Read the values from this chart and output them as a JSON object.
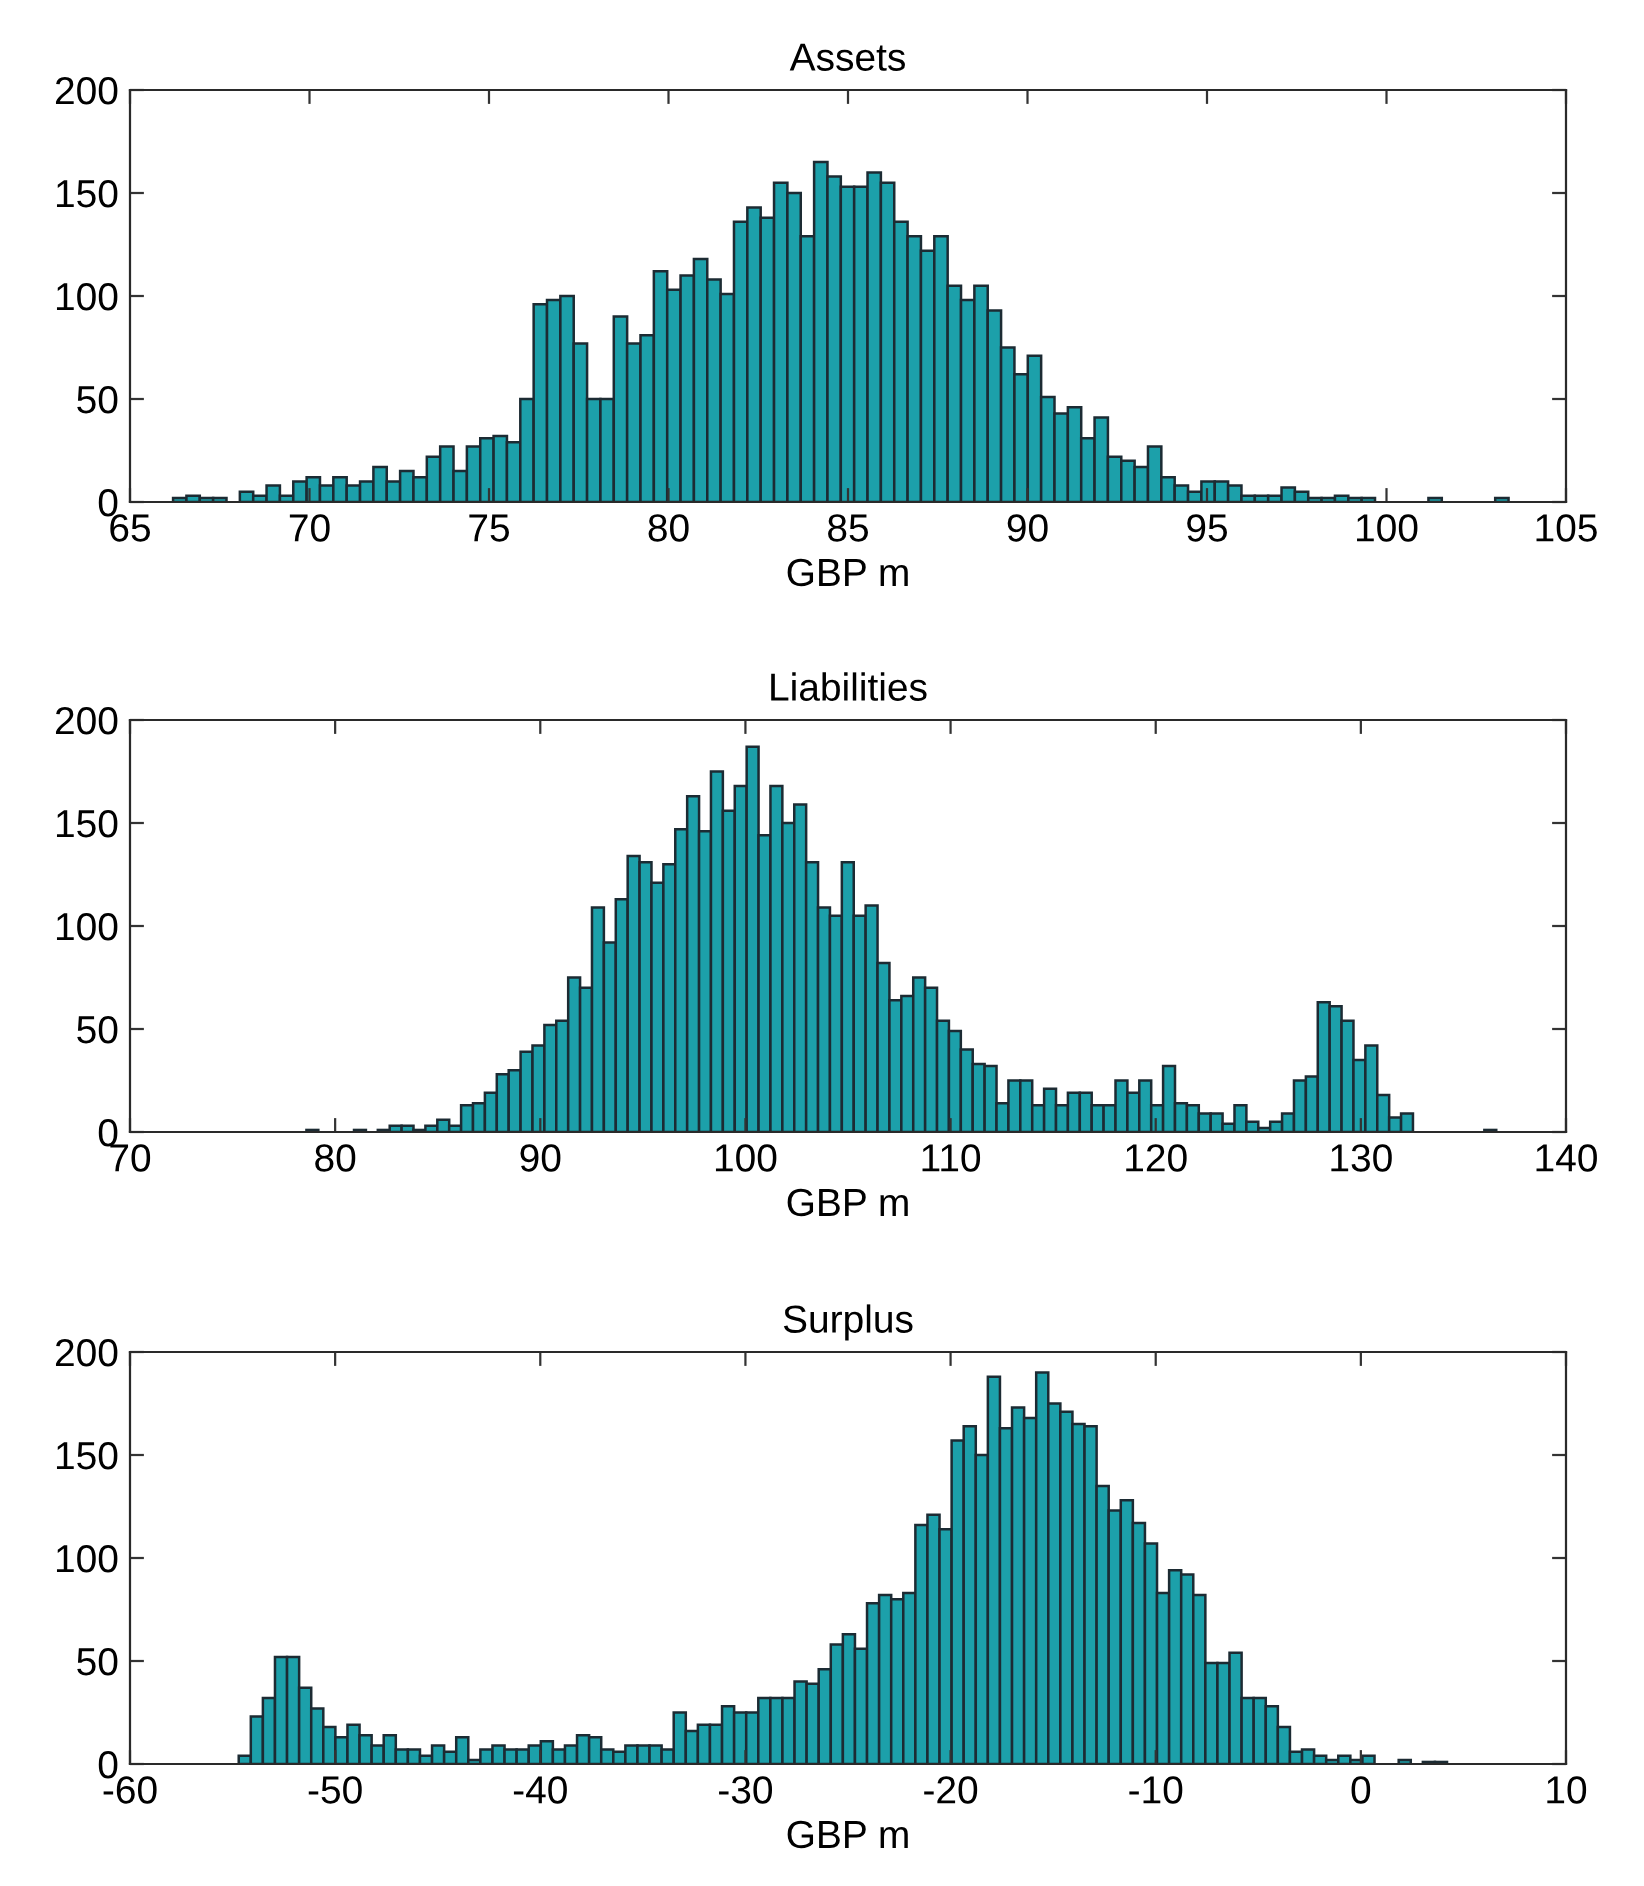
{
  "chart_data": [
    {
      "type": "histogram",
      "title": "Assets",
      "xlabel": "GBP m",
      "color": "#1ca0aa",
      "xlim": [
        65,
        105
      ],
      "xticks": [
        65,
        70,
        75,
        80,
        85,
        90,
        95,
        100,
        105
      ],
      "ylim": [
        0,
        200
      ],
      "yticks": [
        0,
        50,
        100,
        150,
        200
      ],
      "grid": false,
      "legend": false,
      "bins": [
        66.2,
        66.572,
        66.944,
        67.316,
        67.688,
        68.06,
        68.432,
        68.804,
        69.176,
        69.548,
        69.92,
        70.292,
        70.664,
        71.036,
        71.408,
        71.78,
        72.152,
        72.524,
        72.896,
        73.268,
        73.64,
        74.012,
        74.384,
        74.756,
        75.128,
        75.5,
        75.872,
        76.244,
        76.616,
        76.988,
        77.36,
        77.732,
        78.104,
        78.476,
        78.848,
        79.22,
        79.592,
        79.964,
        80.336,
        80.708,
        81.08,
        81.452,
        81.824,
        82.196,
        82.568,
        82.94,
        83.312,
        83.684,
        84.056,
        84.428,
        84.8,
        85.172,
        85.544,
        85.916,
        86.288,
        86.66,
        87.032,
        87.404,
        87.776,
        88.148,
        88.52,
        88.892,
        89.264,
        89.636,
        90.008,
        90.38,
        90.752,
        91.124,
        91.496,
        91.868,
        92.24,
        92.612,
        92.984,
        93.356,
        93.728,
        94.1,
        94.472,
        94.844,
        95.216,
        95.588,
        95.96,
        96.332,
        96.704,
        97.076,
        97.448,
        97.82,
        98.192,
        98.564,
        98.936,
        99.308,
        99.68,
        100.052,
        100.424,
        100.796,
        101.168,
        101.54,
        101.912,
        102.284,
        102.656,
        103.028,
        103.4
      ],
      "values": [
        2,
        3,
        2,
        2,
        0,
        5,
        3,
        8,
        3,
        10,
        12,
        8,
        12,
        8,
        10,
        17,
        10,
        15,
        12,
        22,
        27,
        15,
        27,
        31,
        32,
        29,
        50,
        96,
        98,
        100,
        77,
        50,
        50,
        90,
        77,
        81,
        112,
        103,
        110,
        118,
        108,
        101,
        136,
        143,
        138,
        155,
        150,
        129,
        165,
        158,
        153,
        153,
        160,
        155,
        136,
        129,
        122,
        129,
        105,
        98,
        105,
        93,
        75,
        62,
        71,
        51,
        43,
        46,
        31,
        41,
        22,
        20,
        17,
        27,
        12,
        8,
        5,
        10,
        10,
        8,
        3,
        3,
        3,
        7,
        5,
        2,
        2,
        3,
        2,
        2,
        0,
        0,
        0,
        0,
        2,
        0,
        0,
        0,
        0,
        2
      ]
    },
    {
      "type": "histogram",
      "title": "Liabilities",
      "xlabel": "GBP m",
      "color": "#1ca0aa",
      "xlim": [
        70,
        140
      ],
      "xticks": [
        70,
        80,
        90,
        100,
        110,
        120,
        130,
        140
      ],
      "ylim": [
        0,
        200
      ],
      "yticks": [
        0,
        50,
        100,
        150,
        200
      ],
      "grid": false,
      "legend": false,
      "bins": [
        78.6,
        79.18,
        79.76,
        80.34,
        80.92,
        81.5,
        82.08,
        82.66,
        83.24,
        83.82,
        84.4,
        84.98,
        85.56,
        86.14,
        86.72,
        87.3,
        87.88,
        88.46,
        89.04,
        89.62,
        90.2,
        90.78,
        91.36,
        91.94,
        92.52,
        93.1,
        93.68,
        94.26,
        94.84,
        95.42,
        96,
        96.58,
        97.16,
        97.74,
        98.32,
        98.9,
        99.48,
        100.06,
        100.64,
        101.22,
        101.8,
        102.38,
        102.96,
        103.54,
        104.12,
        104.7,
        105.28,
        105.86,
        106.44,
        107.02,
        107.6,
        108.18,
        108.76,
        109.34,
        109.92,
        110.5,
        111.08,
        111.66,
        112.24,
        112.82,
        113.4,
        113.98,
        114.56,
        115.14,
        115.72,
        116.3,
        116.88,
        117.46,
        118.04,
        118.62,
        119.2,
        119.78,
        120.36,
        120.94,
        121.52,
        122.1,
        122.68,
        123.26,
        123.84,
        124.42,
        125,
        125.58,
        126.16,
        126.74,
        127.32,
        127.9,
        128.48,
        129.06,
        129.64,
        130.22,
        130.8,
        131.38,
        131.96,
        132.54,
        133.12,
        133.7,
        134.28,
        134.86,
        135.44,
        136.02,
        136.6
      ],
      "values": [
        1,
        0,
        0,
        0,
        1,
        0,
        1,
        3,
        3,
        1,
        3,
        6,
        3,
        13,
        14,
        19,
        28,
        30,
        39,
        42,
        52,
        54,
        75,
        70,
        109,
        92,
        113,
        134,
        131,
        121,
        130,
        147,
        163,
        146,
        175,
        156,
        168,
        187,
        144,
        168,
        150,
        159,
        131,
        109,
        105,
        131,
        105,
        110,
        82,
        64,
        66,
        75,
        70,
        54,
        49,
        40,
        33,
        32,
        14,
        25,
        25,
        13,
        21,
        13,
        19,
        19,
        13,
        13,
        25,
        19,
        25,
        13,
        32,
        14,
        13,
        9,
        9,
        4,
        13,
        5,
        2,
        5,
        9,
        25,
        27,
        63,
        61,
        54,
        35,
        42,
        18,
        7,
        9,
        0,
        0,
        0,
        0,
        0,
        0,
        1
      ]
    },
    {
      "type": "histogram",
      "title": "Surplus",
      "xlabel": "GBP m",
      "color": "#1ca0aa",
      "xlim": [
        -60,
        10
      ],
      "xticks": [
        {
          "value": -60,
          "label": "-60"
        },
        {
          "value": -50,
          "label": "-50"
        },
        {
          "value": -40,
          "label": "-40"
        },
        {
          "value": -30,
          "label": "-30"
        },
        {
          "value": -20,
          "label": "-20"
        },
        {
          "value": -10,
          "label": "-10"
        },
        0,
        10
      ],
      "ylim": [
        0,
        200
      ],
      "yticks": [
        0,
        50,
        100,
        150,
        200
      ],
      "grid": false,
      "legend": false,
      "bins": [
        -54.7,
        -54.111,
        -53.522,
        -52.933,
        -52.344,
        -51.755,
        -51.166,
        -50.577,
        -49.988,
        -49.399,
        -48.81,
        -48.221,
        -47.632,
        -47.043,
        -46.454,
        -45.865,
        -45.276,
        -44.687,
        -44.098,
        -43.509,
        -42.92,
        -42.331,
        -41.742,
        -41.153,
        -40.564,
        -39.975,
        -39.386,
        -38.797,
        -38.208,
        -37.619,
        -37.03,
        -36.441,
        -35.852,
        -35.263,
        -34.674,
        -34.085,
        -33.496,
        -32.907,
        -32.318,
        -31.729,
        -31.14,
        -30.551,
        -29.962,
        -29.373,
        -28.784,
        -28.195,
        -27.606,
        -27.017,
        -26.428,
        -25.839,
        -25.25,
        -24.661,
        -24.072,
        -23.483,
        -22.894,
        -22.305,
        -21.716,
        -21.127,
        -20.538,
        -19.949,
        -19.36,
        -18.771,
        -18.182,
        -17.593,
        -17.004,
        -16.415,
        -15.826,
        -15.237,
        -14.648,
        -14.059,
        -13.47,
        -12.881,
        -12.292,
        -11.703,
        -11.114,
        -10.525,
        -9.936,
        -9.347,
        -8.758,
        -8.169,
        -7.58,
        -6.991,
        -6.402,
        -5.813,
        -5.224,
        -4.635,
        -4.046,
        -3.457,
        -2.868,
        -2.279,
        -1.69,
        -1.101,
        -0.512,
        0.077,
        0.666,
        1.255,
        1.844,
        2.433,
        3.022,
        3.611,
        4.2
      ],
      "values": [
        4,
        23,
        32,
        52,
        52,
        37,
        27,
        18,
        13,
        19,
        14,
        9,
        14,
        7,
        7,
        4,
        9,
        6,
        13,
        2,
        7,
        9,
        7,
        7,
        9,
        11,
        7,
        9,
        14,
        13,
        7,
        6,
        9,
        9,
        9,
        7,
        25,
        16,
        19,
        19,
        28,
        25,
        25,
        32,
        32,
        32,
        40,
        39,
        46,
        58,
        63,
        56,
        78,
        82,
        80,
        83,
        116,
        121,
        114,
        157,
        164,
        150,
        188,
        163,
        173,
        168,
        190,
        175,
        171,
        165,
        164,
        135,
        123,
        128,
        117,
        107,
        83,
        94,
        92,
        82,
        49,
        49,
        54,
        32,
        32,
        28,
        18,
        6,
        7,
        4,
        2,
        4,
        2,
        4,
        0,
        0,
        2,
        0,
        1,
        1
      ]
    }
  ]
}
